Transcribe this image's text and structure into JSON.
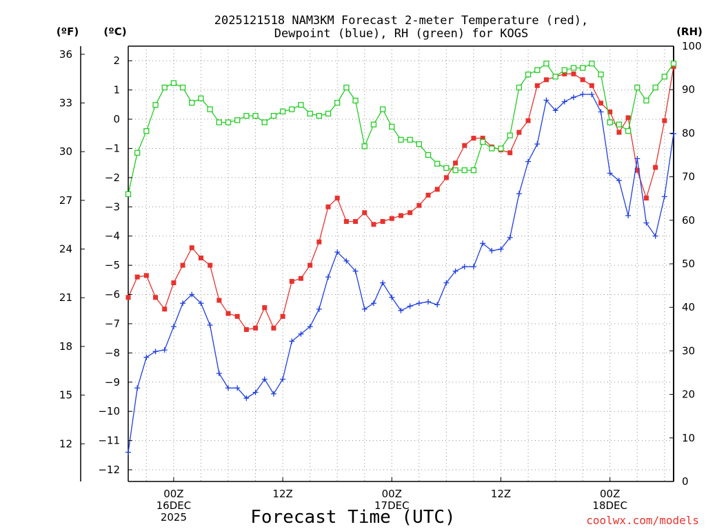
{
  "chart_data": {
    "type": "line",
    "title_line1": "2025121518 NAM3KM Forecast 2-meter Temperature (red),",
    "title_line2": "Dewpoint (blue), RH (green) for KOGS",
    "xlabel": "Forecast Time (UTC)",
    "credit": "coolwx.com/models",
    "units": {
      "fahrenheit": "(ºF)",
      "celsius": "(ºC)",
      "rh": "(RH)"
    },
    "x_hours_start": 19,
    "x_hours_end": 79,
    "x_ticks": [
      {
        "hour": 24,
        "lines": [
          "00Z",
          "16DEC",
          "2025"
        ]
      },
      {
        "hour": 36,
        "lines": [
          "12Z"
        ]
      },
      {
        "hour": 48,
        "lines": [
          "00Z",
          "17DEC"
        ]
      },
      {
        "hour": 60,
        "lines": [
          "12Z"
        ]
      },
      {
        "hour": 72,
        "lines": [
          "00Z",
          "18DEC"
        ]
      }
    ],
    "y_celsius_range": [
      -12.4,
      2.5
    ],
    "y_celsius_ticks": [
      2,
      1,
      0,
      -1,
      -2,
      -3,
      -4,
      -5,
      -6,
      -7,
      -8,
      -9,
      -10,
      -11,
      -12
    ],
    "y_fahrenheit_ticks": [
      36,
      33,
      30,
      27,
      24,
      21,
      18,
      15,
      12
    ],
    "y_rh_range": [
      0,
      100
    ],
    "y_rh_ticks": [
      100,
      90,
      80,
      70,
      60,
      50,
      40,
      30,
      20,
      10,
      0
    ],
    "series": [
      {
        "name": "Temperature",
        "color": "#e8322d",
        "marker": "filled-square",
        "axis": "celsius",
        "x": [
          19,
          20,
          21,
          22,
          23,
          24,
          25,
          26,
          27,
          28,
          29,
          30,
          31,
          32,
          33,
          34,
          35,
          36,
          37,
          38,
          39,
          40,
          41,
          42,
          43,
          44,
          45,
          46,
          47,
          48,
          49,
          50,
          51,
          52,
          53,
          54,
          55,
          56,
          57,
          58,
          59,
          60,
          61,
          62,
          63,
          64,
          65,
          66,
          67,
          68,
          69,
          70,
          71,
          72,
          73,
          74,
          75,
          76,
          77,
          78,
          79
        ],
        "values": [
          -6.1,
          -5.4,
          -5.35,
          -6.1,
          -6.5,
          -5.6,
          -5.0,
          -4.4,
          -4.75,
          -5.0,
          -6.2,
          -6.65,
          -6.75,
          -7.2,
          -7.15,
          -6.45,
          -7.15,
          -6.75,
          -5.55,
          -5.45,
          -5.0,
          -4.2,
          -3.0,
          -2.7,
          -3.5,
          -3.5,
          -3.2,
          -3.6,
          -3.5,
          -3.4,
          -3.3,
          -3.2,
          -2.95,
          -2.6,
          -2.4,
          -2.0,
          -1.5,
          -0.9,
          -0.65,
          -0.65,
          -0.95,
          -1.05,
          -1.15,
          -0.45,
          -0.05,
          1.15,
          1.35,
          1.45,
          1.55,
          1.55,
          1.35,
          1.15,
          0.55,
          0.25,
          -0.45,
          0.05,
          -1.75,
          -2.7,
          -1.65,
          -0.05,
          1.8
        ]
      },
      {
        "name": "Dewpoint",
        "color": "#1f3fdf",
        "marker": "plus",
        "axis": "celsius",
        "x": [
          19,
          20,
          21,
          22,
          23,
          24,
          25,
          26,
          27,
          28,
          29,
          30,
          31,
          32,
          33,
          34,
          35,
          36,
          37,
          38,
          39,
          40,
          41,
          42,
          43,
          44,
          45,
          46,
          47,
          48,
          49,
          50,
          51,
          52,
          53,
          54,
          55,
          56,
          57,
          58,
          59,
          60,
          61,
          62,
          63,
          64,
          65,
          66,
          67,
          68,
          69,
          70,
          71,
          72,
          73,
          74,
          75,
          76,
          77,
          78,
          79
        ],
        "values": [
          -11.4,
          -9.2,
          -8.15,
          -7.95,
          -7.9,
          -7.1,
          -6.3,
          -6.0,
          -6.3,
          -7.05,
          -8.7,
          -9.2,
          -9.2,
          -9.55,
          -9.35,
          -8.9,
          -9.4,
          -8.9,
          -7.6,
          -7.35,
          -7.1,
          -6.5,
          -5.4,
          -4.55,
          -4.85,
          -5.2,
          -6.5,
          -6.3,
          -5.6,
          -6.1,
          -6.55,
          -6.4,
          -6.3,
          -6.25,
          -6.35,
          -5.6,
          -5.2,
          -5.05,
          -5.05,
          -4.25,
          -4.5,
          -4.45,
          -4.05,
          -2.55,
          -1.45,
          -0.85,
          0.65,
          0.3,
          0.6,
          0.75,
          0.85,
          0.85,
          0.25,
          -1.85,
          -2.1,
          -3.3,
          -1.35,
          -3.55,
          -4.0,
          -2.65,
          -0.5
        ]
      },
      {
        "name": "RH",
        "color": "#22cc22",
        "marker": "open-square",
        "axis": "rh",
        "x": [
          19,
          20,
          21,
          22,
          23,
          24,
          25,
          26,
          27,
          28,
          29,
          30,
          31,
          32,
          33,
          34,
          35,
          36,
          37,
          38,
          39,
          40,
          41,
          42,
          43,
          44,
          45,
          46,
          47,
          48,
          49,
          50,
          51,
          52,
          53,
          54,
          55,
          56,
          57,
          58,
          59,
          60,
          61,
          62,
          63,
          64,
          65,
          66,
          67,
          68,
          69,
          70,
          71,
          72,
          73,
          74,
          75,
          76,
          77,
          78,
          79
        ],
        "values": [
          66,
          75.5,
          80.5,
          86.5,
          90.5,
          91.5,
          90.5,
          87,
          88,
          85.5,
          82.5,
          82.5,
          83,
          84,
          84,
          82.5,
          84,
          85,
          85.5,
          86.5,
          84.5,
          84,
          84.5,
          87,
          90.5,
          87.5,
          77,
          82,
          85.5,
          81.5,
          78.5,
          78.5,
          77.5,
          75,
          73,
          72,
          71.5,
          71.5,
          71.5,
          78,
          76.5,
          76.5,
          79.5,
          90.5,
          93.5,
          94.5,
          96,
          93,
          94.5,
          95,
          95,
          96,
          93.5,
          82.5,
          82,
          80.5,
          90.5,
          87.5,
          90.5,
          93,
          96
        ]
      }
    ]
  }
}
